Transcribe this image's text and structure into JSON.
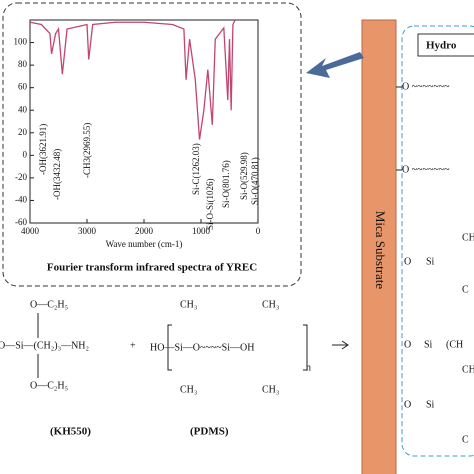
{
  "chart_data": {
    "type": "line",
    "x_label": "Wave number (cm-1)",
    "caption": "Fourier transform infrared spectra of YREC",
    "series": [
      {
        "color": "#c2456d",
        "x": [
          4000,
          3800,
          3650,
          3621.91,
          3550,
          3500,
          3432.48,
          3350,
          3000,
          2969.55,
          2900,
          2500,
          2000,
          1500,
          1300,
          1262.03,
          1200,
          1100,
          1026,
          950,
          880,
          801.76,
          750,
          600,
          529.98,
          500,
          470.81,
          440,
          400
        ],
        "values": [
          118,
          116,
          108,
          90,
          108,
          112,
          72,
          112,
          116,
          85,
          116,
          118,
          118,
          116,
          112,
          67,
          103,
          67,
          14,
          40,
          76,
          27,
          103,
          113,
          49,
          103,
          40,
          116,
          120
        ]
      }
    ],
    "xlim": [
      4000,
      0
    ],
    "ylim": [
      -60,
      120
    ],
    "xticks": [
      4000,
      3000,
      2000,
      1000,
      0
    ],
    "yticks": [
      100,
      80,
      60,
      40,
      20,
      0,
      -20,
      -40,
      -60
    ],
    "annotations": [
      "-OH(3621.91)",
      "-OH(3432.48)",
      "-CH3(2969.55)",
      "Si-C(1262.03)",
      "Si-O-Si(1026)",
      "Si-O(801.76)",
      "Si-O(529.98)",
      "Si-O(470.81)"
    ]
  },
  "substrate": {
    "label": "Mica Substrate",
    "layer_label": "Hydro",
    "bonds": [
      "O ~~~~~~~",
      "O ~~~~~~~"
    ],
    "fragments": [
      "CH",
      "O",
      "Si",
      "C",
      "O",
      "Si",
      "(CH",
      "CH",
      "O",
      "Si",
      "C"
    ]
  },
  "structures": {
    "kh550": {
      "top": "O—C₂H₅",
      "main": "O—Si—(CH₂)₃—NH₂",
      "bottom": "O—C₂H₅",
      "name": "(KH550)"
    },
    "plus": "+",
    "pdms": {
      "top": [
        "CH₃",
        "CH₃"
      ],
      "main": "HO—Si—O~~~~Si—OH",
      "bottom": [
        "CH₃",
        "CH₃"
      ],
      "n": "n",
      "name": "(PDMS)"
    }
  }
}
